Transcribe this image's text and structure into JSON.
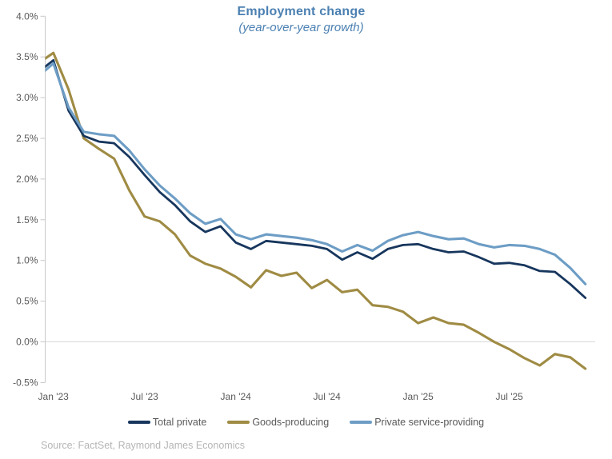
{
  "chart_data": {
    "type": "line",
    "title": "Employment change",
    "subtitle": "(year-over-year growth)",
    "title_color": "#4b80b2",
    "x": [
      "Dec '22",
      "Jan '23",
      "Feb '23",
      "Mar '23",
      "Apr '23",
      "May '23",
      "Jun '23",
      "Jul '23",
      "Aug '23",
      "Sep '23",
      "Oct '23",
      "Nov '23",
      "Dec '23",
      "Jan '24",
      "Feb '24",
      "Mar '24",
      "Apr '24",
      "May '24",
      "Jun '24",
      "Jul '24",
      "Aug '24",
      "Sep '24",
      "Oct '24",
      "Nov '24",
      "Dec '24",
      "Jan '25",
      "Feb '25",
      "Mar '25",
      "Apr '25",
      "May '25",
      "Jun '25",
      "Jul '25",
      "Aug '25",
      "Sep '25",
      "Oct '25",
      "Nov '25",
      "Dec '25"
    ],
    "series": [
      {
        "name": "Total private",
        "color": "#17365d",
        "values": [
          3.31,
          3.46,
          2.84,
          2.53,
          2.46,
          2.44,
          2.27,
          2.05,
          1.84,
          1.68,
          1.48,
          1.35,
          1.42,
          1.22,
          1.14,
          1.24,
          1.22,
          1.2,
          1.18,
          1.14,
          1.01,
          1.1,
          1.02,
          1.14,
          1.19,
          1.2,
          1.14,
          1.1,
          1.11,
          1.04,
          0.96,
          0.97,
          0.94,
          0.87,
          0.86,
          0.71,
          0.54
        ]
      },
      {
        "name": "Goods-producing",
        "color": "#9f8b43",
        "values": [
          3.42,
          3.55,
          3.1,
          2.5,
          2.37,
          2.25,
          1.86,
          1.54,
          1.48,
          1.32,
          1.06,
          0.96,
          0.9,
          0.8,
          0.67,
          0.88,
          0.81,
          0.85,
          0.66,
          0.76,
          0.61,
          0.64,
          0.45,
          0.43,
          0.37,
          0.23,
          0.3,
          0.23,
          0.21,
          0.11,
          0.0,
          -0.09,
          -0.2,
          -0.29,
          -0.15,
          -0.19,
          -0.33
        ]
      },
      {
        "name": "Private service-providing",
        "color": "#6d9dc5",
        "values": [
          3.26,
          3.42,
          2.88,
          2.58,
          2.55,
          2.53,
          2.35,
          2.12,
          1.92,
          1.76,
          1.58,
          1.45,
          1.51,
          1.32,
          1.26,
          1.32,
          1.3,
          1.28,
          1.25,
          1.2,
          1.11,
          1.19,
          1.12,
          1.24,
          1.31,
          1.35,
          1.3,
          1.26,
          1.27,
          1.2,
          1.16,
          1.19,
          1.18,
          1.14,
          1.07,
          0.91,
          0.71
        ]
      }
    ],
    "y_axis": {
      "min": -0.5,
      "max": 4.0,
      "step": 0.5,
      "tick_labels": [
        "4.0%",
        "3.5%",
        "3.0%",
        "2.5%",
        "2.0%",
        "1.5%",
        "1.0%",
        "0.5%",
        "0.0%",
        "-0.5%"
      ],
      "label_color": "#595959",
      "axis_line_color": "#c9c9c9",
      "zero_gridline_color": "#d9d9d9"
    },
    "x_axis": {
      "ticks": [
        {
          "label": "Jan '23",
          "x_index": 1
        },
        {
          "label": "Jul '23",
          "x_index": 7
        },
        {
          "label": "Jan '24",
          "x_index": 13
        },
        {
          "label": "Jul '24",
          "x_index": 19
        },
        {
          "label": "Jan '25",
          "x_index": 25
        },
        {
          "label": "Jul '25",
          "x_index": 31
        }
      ],
      "label_color": "#595959"
    },
    "ylim": [
      -0.5,
      4.0
    ],
    "grid": "horizontal line at 0.0% only",
    "legend_position": "bottom"
  },
  "source_note": "Source: FactSet, Raymond James Economics"
}
